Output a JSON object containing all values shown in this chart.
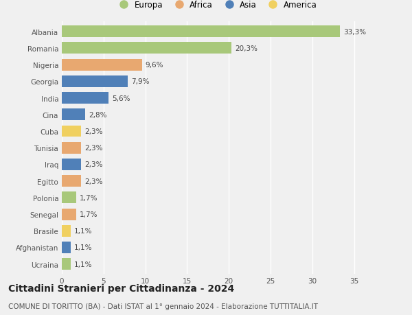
{
  "countries": [
    "Albania",
    "Romania",
    "Nigeria",
    "Georgia",
    "India",
    "Cina",
    "Cuba",
    "Tunisia",
    "Iraq",
    "Egitto",
    "Polonia",
    "Senegal",
    "Brasile",
    "Afghanistan",
    "Ucraina"
  ],
  "values": [
    33.3,
    20.3,
    9.6,
    7.9,
    5.6,
    2.8,
    2.3,
    2.3,
    2.3,
    2.3,
    1.7,
    1.7,
    1.1,
    1.1,
    1.1
  ],
  "labels": [
    "33,3%",
    "20,3%",
    "9,6%",
    "7,9%",
    "5,6%",
    "2,8%",
    "2,3%",
    "2,3%",
    "2,3%",
    "2,3%",
    "1,7%",
    "1,7%",
    "1,1%",
    "1,1%",
    "1,1%"
  ],
  "continents": [
    "Europa",
    "Europa",
    "Africa",
    "Asia",
    "Asia",
    "Asia",
    "America",
    "Africa",
    "Asia",
    "Africa",
    "Europa",
    "Africa",
    "America",
    "Asia",
    "Europa"
  ],
  "colors": {
    "Europa": "#a8c87a",
    "Africa": "#e8a870",
    "Asia": "#5080b8",
    "America": "#f0d060"
  },
  "xlim": [
    0,
    37
  ],
  "xticks": [
    0,
    5,
    10,
    15,
    20,
    25,
    30,
    35
  ],
  "title": "Cittadini Stranieri per Cittadinanza - 2024",
  "subtitle": "COMUNE DI TORITTO (BA) - Dati ISTAT al 1° gennaio 2024 - Elaborazione TUTTITALIA.IT",
  "background_color": "#f0f0f0",
  "bar_height": 0.7,
  "label_fontsize": 7.5,
  "ytick_fontsize": 7.5,
  "xtick_fontsize": 7.5,
  "title_fontsize": 10,
  "subtitle_fontsize": 7.5,
  "legend_order": [
    "Europa",
    "Africa",
    "Asia",
    "America"
  ]
}
